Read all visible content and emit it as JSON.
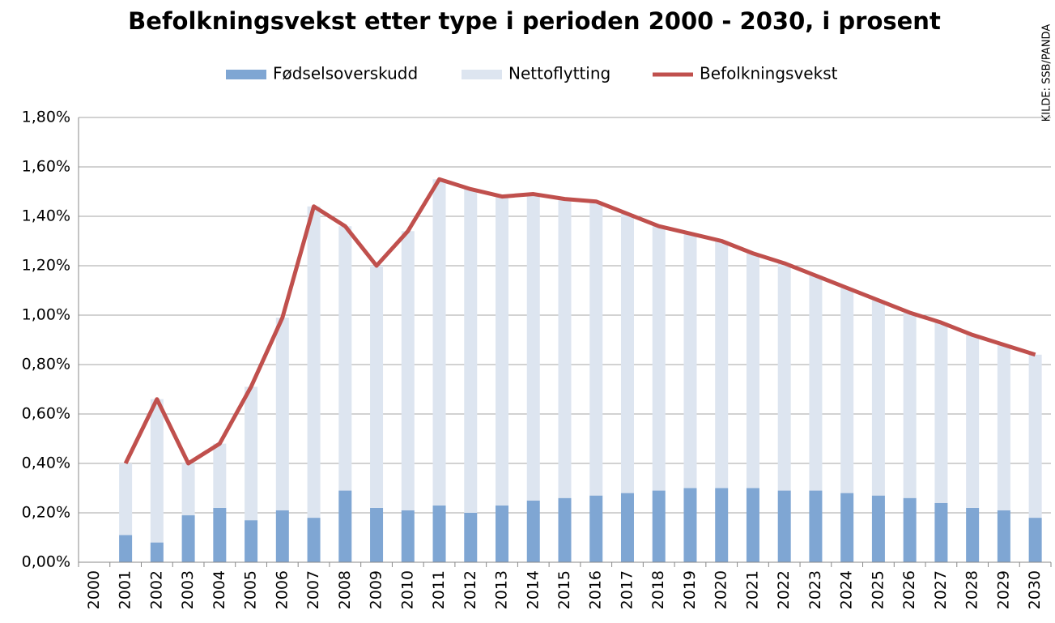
{
  "chart_data": {
    "type": "stacked-bar-line",
    "title": "Befolkningsvekst etter type i perioden 2000 - 2030, i prosent",
    "source": "KILDE: SSB/PANDA",
    "categories": [
      "2000",
      "2001",
      "2002",
      "2003",
      "2004",
      "2005",
      "2006",
      "2007",
      "2008",
      "2009",
      "2010",
      "2011",
      "2012",
      "2013",
      "2014",
      "2015",
      "2016",
      "2017",
      "2018",
      "2019",
      "2020",
      "2021",
      "2022",
      "2023",
      "2024",
      "2025",
      "2026",
      "2027",
      "2028",
      "2029",
      "2030"
    ],
    "series": [
      {
        "name": "Fødselsoverskudd",
        "color": "#7fa6d3",
        "kind": "bar",
        "values": [
          null,
          0.11,
          0.08,
          0.19,
          0.22,
          0.17,
          0.21,
          0.18,
          0.29,
          0.22,
          0.21,
          0.23,
          0.2,
          0.23,
          0.25,
          0.26,
          0.27,
          0.28,
          0.29,
          0.3,
          0.3,
          0.3,
          0.29,
          0.29,
          0.28,
          0.27,
          0.26,
          0.24,
          0.22,
          0.21,
          0.18
        ]
      },
      {
        "name": "Nettoflytting",
        "color": "#dde5f0",
        "kind": "bar",
        "values": [
          null,
          0.29,
          0.58,
          0.21,
          0.26,
          0.54,
          0.78,
          1.26,
          1.07,
          0.98,
          1.13,
          1.32,
          1.31,
          1.25,
          1.24,
          1.21,
          1.19,
          1.13,
          1.07,
          1.03,
          1.0,
          0.95,
          0.92,
          0.87,
          0.83,
          0.79,
          0.75,
          0.73,
          0.7,
          0.67,
          0.66
        ]
      },
      {
        "name": "Befolkningsvekst",
        "color": "#c0504d",
        "kind": "line",
        "values": [
          null,
          0.4,
          0.66,
          0.4,
          0.48,
          0.71,
          0.99,
          1.44,
          1.36,
          1.2,
          1.34,
          1.55,
          1.51,
          1.48,
          1.49,
          1.47,
          1.46,
          1.41,
          1.36,
          1.33,
          1.3,
          1.25,
          1.21,
          1.16,
          1.11,
          1.06,
          1.01,
          0.97,
          0.92,
          0.88,
          0.84
        ]
      }
    ],
    "ylim": [
      0,
      1.8
    ],
    "yticks": [
      {
        "value": 0,
        "label": "0,00%"
      },
      {
        "value": 0.2,
        "label": "0,20%"
      },
      {
        "value": 0.4,
        "label": "0,40%"
      },
      {
        "value": 0.6,
        "label": "0,60%"
      },
      {
        "value": 0.8,
        "label": "0,80%"
      },
      {
        "value": 1.0,
        "label": "1,00%"
      },
      {
        "value": 1.2,
        "label": "1,20%"
      },
      {
        "value": 1.4,
        "label": "1,40%"
      },
      {
        "value": 1.6,
        "label": "1,60%"
      },
      {
        "value": 1.8,
        "label": "1,80%"
      }
    ],
    "grid": true,
    "legend": "top"
  }
}
